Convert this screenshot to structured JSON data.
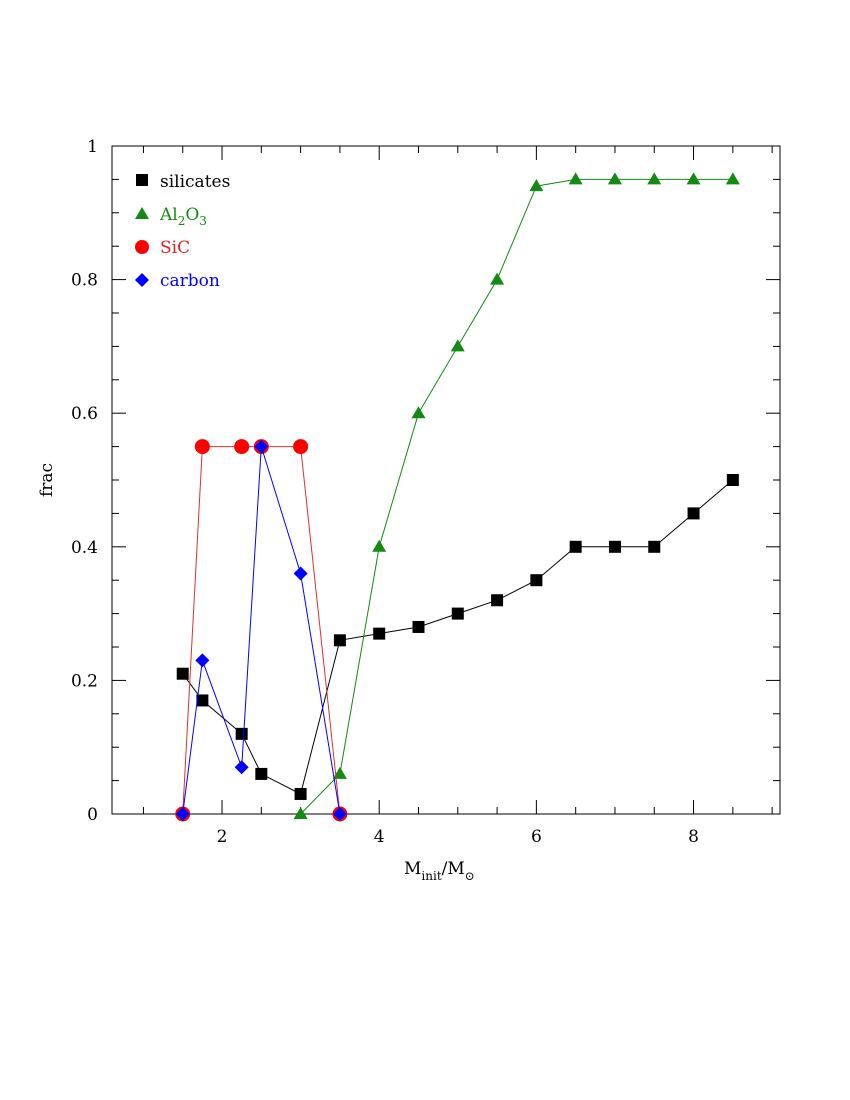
{
  "chart_data": {
    "type": "line",
    "xlabel": {
      "main": "M",
      "sub": "init",
      "sep": "/M",
      "sub2": "⊙"
    },
    "ylabel": "frac",
    "xlim": [
      0.6,
      9.1
    ],
    "ylim": [
      0,
      1
    ],
    "xticks_major": [
      2,
      4,
      6,
      8
    ],
    "xticks_minor_step": 0.5,
    "yticks_major": [
      0,
      0.2,
      0.4,
      0.6,
      0.8,
      1
    ],
    "yticks_minor_step": 0.05,
    "ytick_labels": [
      "0",
      "0.2",
      "0.4",
      "0.6",
      "0.8",
      "1"
    ],
    "xtick_labels": [
      "2",
      "4",
      "6",
      "8"
    ],
    "grid": false,
    "legend_position": "top-left",
    "series": [
      {
        "key": "silicates",
        "name": "silicates",
        "legend_text": {
          "main": "silicates"
        },
        "marker": "square",
        "color": "#000000",
        "x": [
          1.5,
          1.75,
          2.25,
          2.5,
          3.0,
          3.5,
          4.0,
          4.5,
          5.0,
          5.5,
          6.0,
          6.5,
          7.0,
          7.5,
          8.0,
          8.5
        ],
        "y": [
          0.21,
          0.17,
          0.12,
          0.06,
          0.03,
          0.26,
          0.27,
          0.28,
          0.3,
          0.32,
          0.35,
          0.4,
          0.4,
          0.4,
          0.45,
          0.5
        ]
      },
      {
        "key": "al2o3",
        "name": "Al2O3",
        "legend_text": {
          "p1": "Al",
          "s1": "2",
          "p2": "O",
          "s2": "3"
        },
        "marker": "triangle",
        "color": "#138a13",
        "x": [
          3.0,
          3.5,
          4.0,
          4.5,
          5.0,
          5.5,
          6.0,
          6.5,
          7.0,
          7.5,
          8.0,
          8.5
        ],
        "y": [
          0.0,
          0.06,
          0.4,
          0.6,
          0.7,
          0.8,
          0.94,
          0.95,
          0.95,
          0.95,
          0.95,
          0.95
        ]
      },
      {
        "key": "sic",
        "name": "SiC",
        "legend_text": {
          "main": "SiC"
        },
        "marker": "circle",
        "color": "#ff0000",
        "line_color": "#e03030",
        "x": [
          1.5,
          1.75,
          2.25,
          2.5,
          3.0,
          3.5
        ],
        "y": [
          0.0,
          0.55,
          0.55,
          0.55,
          0.55,
          0.0
        ]
      },
      {
        "key": "carbon",
        "name": "carbon",
        "legend_text": {
          "main": "carbon"
        },
        "marker": "diamond",
        "color": "#0000ff",
        "x": [
          1.5,
          1.75,
          2.25,
          2.5,
          3.0,
          3.5
        ],
        "y": [
          0.0,
          0.23,
          0.07,
          0.55,
          0.36,
          0.0
        ]
      }
    ],
    "draw_order": [
      "silicates",
      "al2o3",
      "sic",
      "carbon"
    ]
  }
}
